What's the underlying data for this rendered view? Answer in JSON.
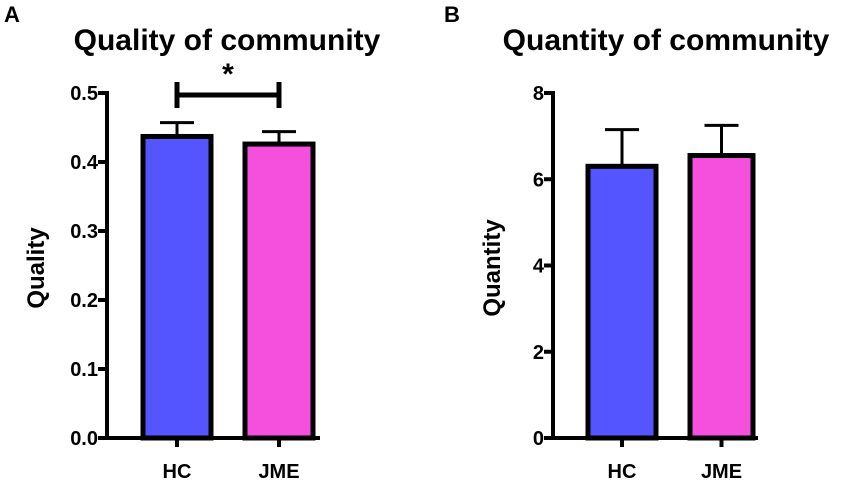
{
  "chart_data": [
    {
      "type": "bar",
      "panel_label": "A",
      "title": "Quality of community",
      "xlabel": "",
      "ylabel": "Quality",
      "categories": [
        "HC",
        "JME"
      ],
      "values": [
        0.437,
        0.426
      ],
      "errors": [
        0.02,
        0.018
      ],
      "colors": [
        "#5555ff",
        "#f54fde"
      ],
      "ylim": [
        0,
        0.5
      ],
      "yticks": [
        "0.0",
        "0.1",
        "0.2",
        "0.3",
        "0.4",
        "0.5"
      ],
      "ytick_values": [
        0,
        0.1,
        0.2,
        0.3,
        0.4,
        0.5
      ],
      "significance": {
        "pair": [
          "HC",
          "JME"
        ],
        "label": "*"
      }
    },
    {
      "type": "bar",
      "panel_label": "B",
      "title": "Quantity of community",
      "xlabel": "",
      "ylabel": "Quantity",
      "categories": [
        "HC",
        "JME"
      ],
      "values": [
        6.3,
        6.55
      ],
      "errors": [
        0.85,
        0.7
      ],
      "colors": [
        "#5555ff",
        "#f54fde"
      ],
      "ylim": [
        0,
        8
      ],
      "yticks": [
        "0",
        "2",
        "4",
        "6",
        "8"
      ],
      "ytick_values": [
        0,
        2,
        4,
        6,
        8
      ]
    }
  ]
}
